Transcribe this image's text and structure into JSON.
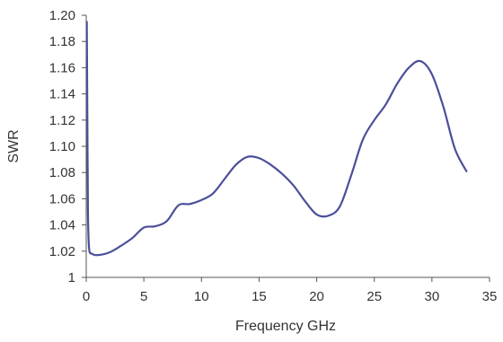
{
  "chart_data": {
    "type": "line",
    "xlabel": "Frequency GHz",
    "ylabel": "SWR",
    "xlim": [
      0,
      35
    ],
    "ylim": [
      1.0,
      1.2
    ],
    "x_ticks": [
      0,
      5,
      10,
      15,
      20,
      25,
      30,
      35
    ],
    "x_tick_labels": [
      "0",
      "5",
      "10",
      "15",
      "20",
      "25",
      "30",
      "35"
    ],
    "y_ticks": [
      1.0,
      1.02,
      1.04,
      1.06,
      1.08,
      1.1,
      1.12,
      1.14,
      1.16,
      1.18,
      1.2
    ],
    "y_tick_labels": [
      "1",
      "1.02",
      "1.04",
      "1.06",
      "1.08",
      "1.10",
      "1.12",
      "1.14",
      "1.16",
      "1.18",
      "1.20"
    ],
    "grid": false,
    "legend": false,
    "series": [
      {
        "color": "#4b4f9a",
        "points": [
          [
            0.05,
            1.195
          ],
          [
            0.1,
            1.12
          ],
          [
            0.15,
            1.05
          ],
          [
            0.25,
            1.022
          ],
          [
            0.5,
            1.018
          ],
          [
            1,
            1.017
          ],
          [
            2,
            1.019
          ],
          [
            3,
            1.024
          ],
          [
            4,
            1.03
          ],
          [
            5,
            1.038
          ],
          [
            6,
            1.039
          ],
          [
            7,
            1.043
          ],
          [
            8,
            1.055
          ],
          [
            9,
            1.056
          ],
          [
            10,
            1.059
          ],
          [
            11,
            1.064
          ],
          [
            12,
            1.075
          ],
          [
            13,
            1.086
          ],
          [
            14,
            1.092
          ],
          [
            15,
            1.091
          ],
          [
            16,
            1.086
          ],
          [
            17,
            1.079
          ],
          [
            18,
            1.07
          ],
          [
            19,
            1.058
          ],
          [
            20,
            1.048
          ],
          [
            21,
            1.047
          ],
          [
            22,
            1.054
          ],
          [
            23,
            1.078
          ],
          [
            24,
            1.105
          ],
          [
            25,
            1.12
          ],
          [
            26,
            1.132
          ],
          [
            27,
            1.148
          ],
          [
            28,
            1.16
          ],
          [
            29,
            1.165
          ],
          [
            30,
            1.155
          ],
          [
            31,
            1.13
          ],
          [
            32,
            1.098
          ],
          [
            33,
            1.081
          ]
        ]
      }
    ]
  }
}
